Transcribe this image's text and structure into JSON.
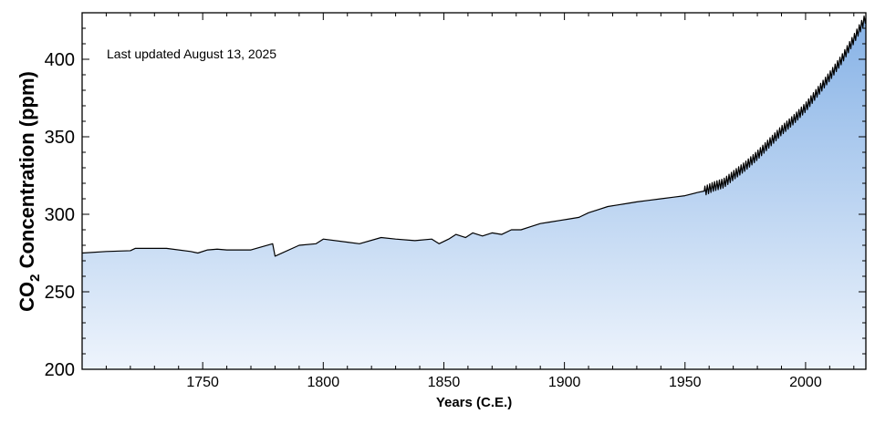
{
  "chart_data": {
    "type": "area",
    "title": "",
    "annotation": "Last updated August 13, 2025",
    "xlabel": "Years (C.E.)",
    "ylabel": {
      "main": "CO",
      "subscript": "2",
      "rest": " Concentration (ppm)"
    },
    "xlim": [
      1700,
      2025
    ],
    "ylim": [
      200,
      430
    ],
    "xticks": [
      1750,
      1800,
      1850,
      1900,
      1950,
      2000
    ],
    "yticks": [
      200,
      250,
      300,
      350,
      400
    ],
    "grid": false,
    "legend": "none",
    "colors": {
      "fill_top": "#86b2e6",
      "fill_bottom": "#eef4fc",
      "line": "#000000"
    },
    "series": [
      {
        "x": [
          1700,
          1710,
          1720,
          1722,
          1735,
          1745,
          1748,
          1752,
          1756,
          1760,
          1765,
          1770,
          1779,
          1780,
          1790,
          1797,
          1800,
          1815,
          1824,
          1830,
          1838,
          1845,
          1848,
          1852,
          1855,
          1859,
          1862,
          1866,
          1870,
          1874,
          1878,
          1882,
          1886,
          1890,
          1894,
          1898,
          1902,
          1906,
          1910,
          1914,
          1918,
          1922,
          1926,
          1930,
          1935,
          1940,
          1945,
          1950,
          1955,
          1958,
          1962,
          1966,
          1970,
          1975,
          1980,
          1985,
          1990,
          1995,
          2000,
          2005,
          2010,
          2015,
          2020,
          2025
        ],
        "y": [
          275,
          276,
          276.5,
          278,
          278,
          276,
          275,
          277,
          277.5,
          277,
          277,
          277,
          281,
          273,
          280,
          281,
          284,
          281,
          285,
          284,
          283,
          284,
          281,
          284,
          287,
          285,
          288,
          286,
          288,
          287,
          290,
          290,
          292,
          294,
          295,
          296,
          297,
          298,
          301,
          303,
          305,
          306,
          307,
          308,
          309,
          310,
          311,
          312,
          314,
          315,
          318,
          320,
          325,
          331,
          338,
          346,
          354,
          361,
          369,
          379,
          389,
          400,
          413,
          427
        ]
      }
    ]
  }
}
